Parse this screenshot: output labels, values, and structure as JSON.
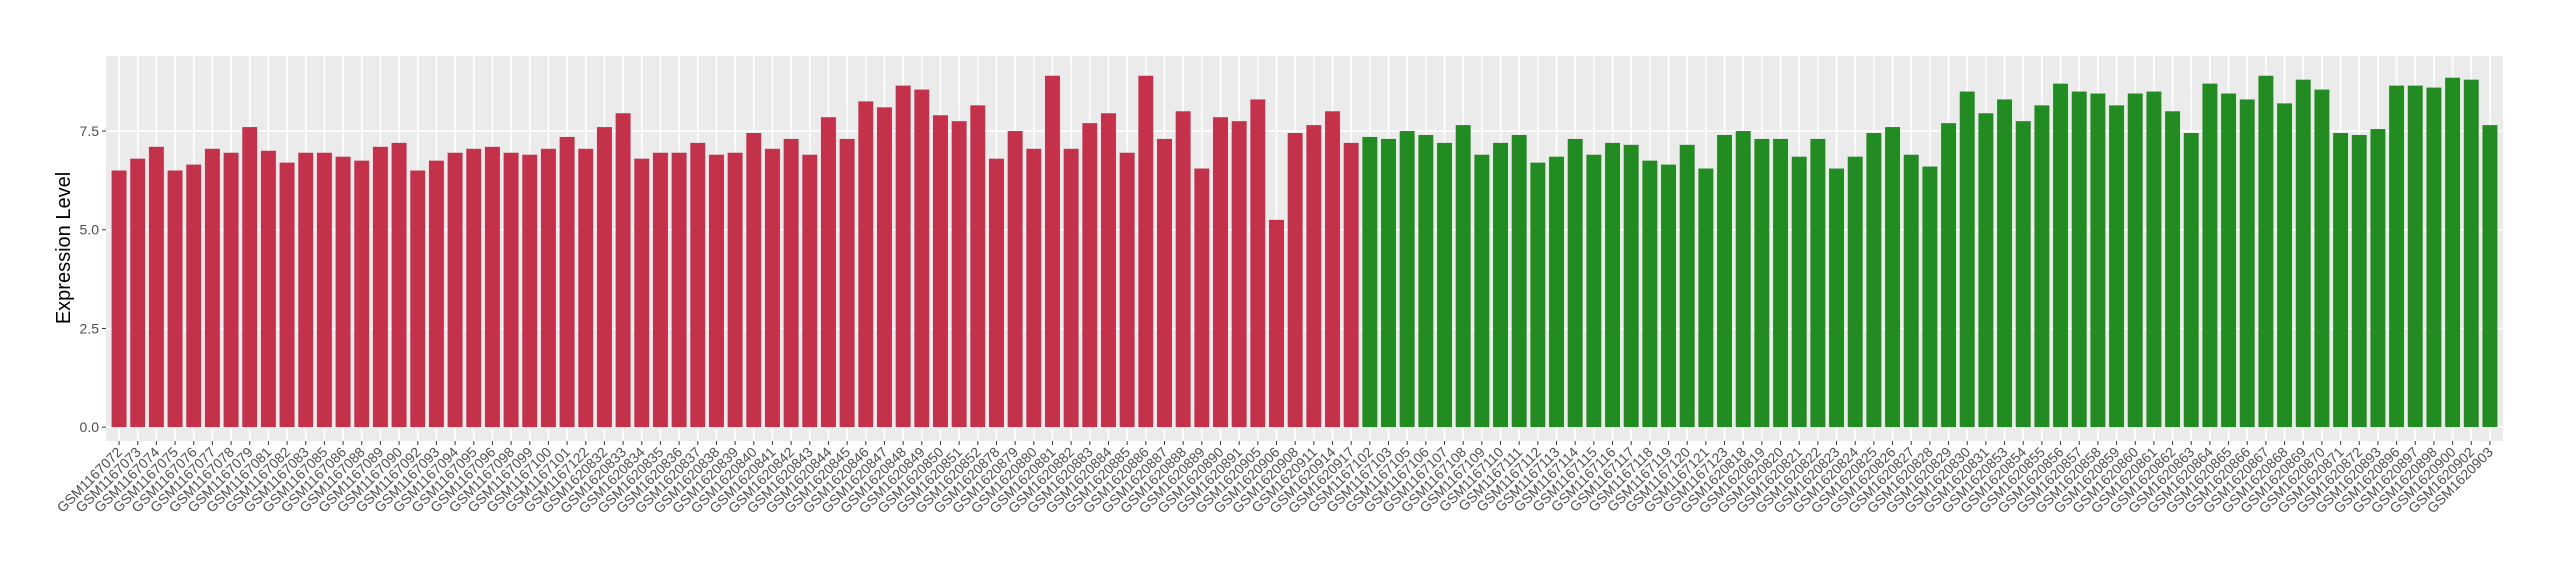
{
  "chart_data": {
    "type": "bar",
    "y_label": "Expression Level",
    "categories": [
      "GSM1167072",
      "GSM1167073",
      "GSM1167074",
      "GSM1167075",
      "GSM1167076",
      "GSM1167077",
      "GSM1167078",
      "GSM1167079",
      "GSM1167081",
      "GSM1167082",
      "GSM1167083",
      "GSM1167085",
      "GSM1167086",
      "GSM1167088",
      "GSM1167089",
      "GSM1167090",
      "GSM1167092",
      "GSM1167093",
      "GSM1167094",
      "GSM1167095",
      "GSM1167096",
      "GSM1167098",
      "GSM1167099",
      "GSM1167100",
      "GSM1167101",
      "GSM1167122",
      "GSM1620832",
      "GSM1620833",
      "GSM1620834",
      "GSM1620835",
      "GSM1620836",
      "GSM1620837",
      "GSM1620838",
      "GSM1620839",
      "GSM1620840",
      "GSM1620841",
      "GSM1620842",
      "GSM1620843",
      "GSM1620844",
      "GSM1620845",
      "GSM1620846",
      "GSM1620847",
      "GSM1620848",
      "GSM1620849",
      "GSM1620850",
      "GSM1620851",
      "GSM1620852",
      "GSM1620878",
      "GSM1620879",
      "GSM1620880",
      "GSM1620881",
      "GSM1620882",
      "GSM1620883",
      "GSM1620884",
      "GSM1620885",
      "GSM1620886",
      "GSM1620887",
      "GSM1620888",
      "GSM1620889",
      "GSM1620890",
      "GSM1620891",
      "GSM1620905",
      "GSM1620906",
      "GSM1620908",
      "GSM1620911",
      "GSM1620914",
      "GSM1620917",
      "GSM1167102",
      "GSM1167103",
      "GSM1167105",
      "GSM1167106",
      "GSM1167107",
      "GSM1167108",
      "GSM1167109",
      "GSM1167110",
      "GSM1167111",
      "GSM1167112",
      "GSM1167113",
      "GSM1167114",
      "GSM1167115",
      "GSM1167116",
      "GSM1167117",
      "GSM1167118",
      "GSM1167119",
      "GSM1167120",
      "GSM1167121",
      "GSM1167123",
      "GSM1620818",
      "GSM1620819",
      "GSM1620820",
      "GSM1620821",
      "GSM1620822",
      "GSM1620823",
      "GSM1620824",
      "GSM1620825",
      "GSM1620826",
      "GSM1620827",
      "GSM1620828",
      "GSM1620829",
      "GSM1620830",
      "GSM1620831",
      "GSM1620853",
      "GSM1620854",
      "GSM1620855",
      "GSM1620856",
      "GSM1620857",
      "GSM1620858",
      "GSM1620859",
      "GSM1620860",
      "GSM1620861",
      "GSM1620862",
      "GSM1620863",
      "GSM1620864",
      "GSM1620865",
      "GSM1620866",
      "GSM1620867",
      "GSM1620868",
      "GSM1620869",
      "GSM1620870",
      "GSM1620871",
      "GSM1620872",
      "GSM1620893",
      "GSM1620896",
      "GSM1620897",
      "GSM1620898",
      "GSM1620900",
      "GSM1620902",
      "GSM1620903"
    ],
    "series": [
      {
        "color": "#c3324a",
        "values": [
          6.5,
          6.8,
          7.1,
          6.5,
          6.65,
          7.05,
          6.95,
          7.6,
          7.0,
          6.7,
          6.95,
          6.95,
          6.85,
          6.75,
          7.1,
          7.2,
          6.5,
          6.75,
          6.95,
          7.05,
          7.1,
          6.95,
          6.9,
          7.05,
          7.35,
          7.05,
          7.6,
          7.95,
          6.8,
          6.95,
          6.95,
          7.2,
          6.9,
          6.95,
          7.45,
          7.05,
          7.3,
          6.9,
          7.85,
          7.3,
          8.25,
          8.1,
          8.65,
          8.55,
          7.9,
          7.75,
          8.15,
          6.8,
          7.5,
          7.05,
          8.9,
          7.05,
          7.7,
          7.95,
          6.95,
          8.9,
          7.3,
          8.0,
          6.55,
          7.85,
          7.75,
          8.3,
          5.25,
          7.45,
          7.65,
          8.0,
          7.2,
          null,
          null,
          null,
          null,
          null,
          null,
          null,
          null,
          null,
          null,
          null,
          null,
          null,
          null,
          null,
          null,
          null,
          null,
          null,
          null,
          null,
          null,
          null,
          null,
          null,
          null,
          null,
          null,
          null,
          null,
          null,
          null,
          null,
          null,
          null,
          null,
          null,
          null,
          null,
          null,
          null,
          null,
          null,
          null,
          null,
          null,
          null,
          null,
          null,
          null,
          null,
          null,
          null,
          null,
          null,
          null,
          null,
          null,
          null,
          null,
          null
        ]
      },
      {
        "color": "#228b22",
        "values": [
          null,
          null,
          null,
          null,
          null,
          null,
          null,
          null,
          null,
          null,
          null,
          null,
          null,
          null,
          null,
          null,
          null,
          null,
          null,
          null,
          null,
          null,
          null,
          null,
          null,
          null,
          null,
          null,
          null,
          null,
          null,
          null,
          null,
          null,
          null,
          null,
          null,
          null,
          null,
          null,
          null,
          null,
          null,
          null,
          null,
          null,
          null,
          null,
          null,
          null,
          null,
          null,
          null,
          null,
          null,
          null,
          null,
          null,
          null,
          null,
          null,
          null,
          null,
          null,
          null,
          null,
          null,
          7.35,
          7.3,
          7.5,
          7.4,
          7.2,
          7.65,
          6.9,
          7.2,
          7.4,
          6.7,
          6.85,
          7.3,
          6.9,
          7.2,
          7.15,
          6.75,
          6.65,
          7.15,
          6.55,
          7.4,
          7.5,
          7.3,
          7.3,
          6.85,
          7.3,
          6.55,
          6.85,
          7.45,
          7.6,
          6.9,
          6.6,
          7.7,
          8.5,
          7.95,
          8.3,
          7.75,
          8.15,
          8.7,
          8.5,
          8.45,
          8.15,
          8.45,
          8.5,
          8.0,
          7.45,
          8.7,
          8.45,
          8.3,
          8.9,
          8.2,
          8.8,
          8.55,
          7.45,
          7.4,
          7.55,
          8.65,
          8.65,
          8.6,
          8.85,
          8.8,
          7.65
        ]
      }
    ],
    "ylim": [
      -0.35,
      9.4
    ],
    "yticks": [
      {
        "value": 0,
        "label": "0.0"
      },
      {
        "value": 2.5,
        "label": "2.5"
      },
      {
        "value": 5,
        "label": "5.0"
      },
      {
        "value": 7.5,
        "label": "7.5"
      }
    ],
    "grid": true
  }
}
